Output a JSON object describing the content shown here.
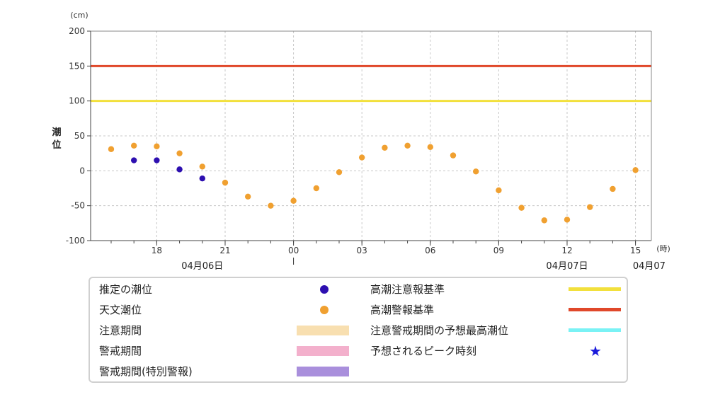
{
  "chart_data": {
    "type": "scatter",
    "unit": "(cm)",
    "ylabel": "潮位",
    "x_unit": "(時)",
    "ylim": [
      -100,
      200
    ],
    "yticks": [
      200,
      150,
      100,
      50,
      0,
      -50,
      -100
    ],
    "x_ticks": [
      {
        "hour": 18,
        "label": "18"
      },
      {
        "hour": 21,
        "label": "21"
      },
      {
        "hour": 24,
        "label": "00"
      },
      {
        "hour": 27,
        "label": "03"
      },
      {
        "hour": 30,
        "label": "06"
      },
      {
        "hour": 33,
        "label": "09"
      },
      {
        "hour": 36,
        "label": "12"
      },
      {
        "hour": 39,
        "label": "15"
      }
    ],
    "date_labels": [
      {
        "hour": 20,
        "label": "04月06日"
      },
      {
        "hour": 36,
        "label": "04月07日"
      },
      {
        "hour": 39.6,
        "label": "04月07"
      }
    ],
    "thresholds": [
      {
        "name": "高潮注意報基準",
        "value": 100,
        "color": "#f2e03c"
      },
      {
        "name": "高潮警報基準",
        "value": 150,
        "color": "#e0482a"
      }
    ],
    "series": [
      {
        "name": "推定の潮位",
        "color": "#2d0fb0",
        "points": [
          {
            "hour": 17,
            "y": 15
          },
          {
            "hour": 18,
            "y": 15
          },
          {
            "hour": 19,
            "y": 2
          },
          {
            "hour": 20,
            "y": -11
          }
        ]
      },
      {
        "name": "天文潮位",
        "color": "#f0a030",
        "points": [
          {
            "hour": 16,
            "y": 31
          },
          {
            "hour": 17,
            "y": 36
          },
          {
            "hour": 18,
            "y": 35
          },
          {
            "hour": 19,
            "y": 25
          },
          {
            "hour": 20,
            "y": 6
          },
          {
            "hour": 21,
            "y": -17
          },
          {
            "hour": 22,
            "y": -37
          },
          {
            "hour": 23,
            "y": -50
          },
          {
            "hour": 24,
            "y": -43
          },
          {
            "hour": 25,
            "y": -25
          },
          {
            "hour": 26,
            "y": -2
          },
          {
            "hour": 27,
            "y": 19
          },
          {
            "hour": 28,
            "y": 33
          },
          {
            "hour": 29,
            "y": 36
          },
          {
            "hour": 30,
            "y": 34
          },
          {
            "hour": 31,
            "y": 22
          },
          {
            "hour": 32,
            "y": -1
          },
          {
            "hour": 33,
            "y": -28
          },
          {
            "hour": 34,
            "y": -53
          },
          {
            "hour": 35,
            "y": -71
          },
          {
            "hour": 36,
            "y": -70
          },
          {
            "hour": 37,
            "y": -52
          },
          {
            "hour": 38,
            "y": -26
          },
          {
            "hour": 39,
            "y": 1
          }
        ]
      }
    ],
    "grid": true
  },
  "legend": {
    "estimated": {
      "label": "推定の潮位",
      "color": "#2d0fb0"
    },
    "astronomical": {
      "label": "天文潮位",
      "color": "#f0a030"
    },
    "caution_period": {
      "label": "注意期間",
      "color": "#f8dfb0"
    },
    "warning_period": {
      "label": "警戒期間",
      "color": "#f3b0cc"
    },
    "special_warning_period": {
      "label": "警戒期間(特別警報)",
      "color": "#a98fdc"
    },
    "advisory_threshold": {
      "label": "高潮注意報基準",
      "color": "#f2e03c"
    },
    "warning_threshold": {
      "label": "高潮警報基準",
      "color": "#e0482a"
    },
    "predicted_max": {
      "label": "注意警戒期間の予想最高潮位",
      "color": "#7af2f5"
    },
    "peak_time": {
      "label": "予想されるピーク時刻",
      "color": "#1a1adb",
      "icon": "star-icon"
    }
  }
}
